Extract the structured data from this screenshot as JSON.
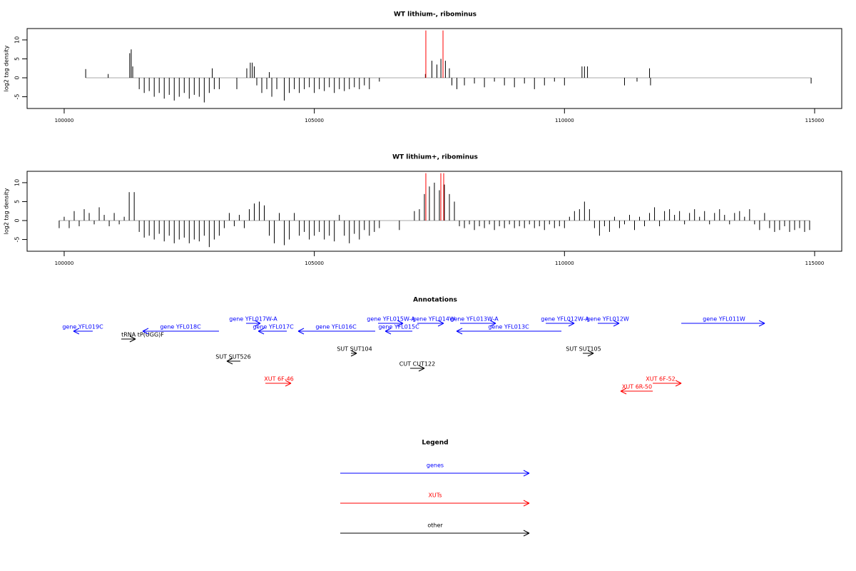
{
  "chart_data": [
    {
      "type": "bar",
      "title": "WT lithium-, ribominus",
      "y_label": "log2 tag density",
      "xlim": [
        99259,
        115542
      ],
      "ylim": [
        -8.1,
        13
      ],
      "xticks": [
        100000,
        105000,
        110000,
        115000
      ],
      "yticks": [
        -5,
        0,
        5,
        10
      ],
      "series": [
        {
          "color": "#000000",
          "x": [
            100430,
            100880,
            101310,
            101340,
            101370,
            101500,
            101600,
            101700,
            101800,
            101900,
            102000,
            102100,
            102200,
            102300,
            102400,
            102500,
            102600,
            102700,
            102800,
            102900,
            103000,
            103100,
            102960,
            103451,
            103650,
            103720,
            103760,
            103800,
            103850,
            103950,
            104050,
            104100,
            104150,
            104250,
            104400,
            104500,
            104600,
            104700,
            104800,
            104900,
            105000,
            105100,
            105200,
            105300,
            105400,
            105500,
            105600,
            105700,
            105800,
            105900,
            106000,
            106100,
            106300,
            107220,
            107350,
            107450,
            107530,
            107620,
            107700,
            107750,
            107850,
            108000,
            108200,
            108400,
            108600,
            108800,
            109000,
            109200,
            109400,
            109600,
            109800,
            110000,
            110350,
            110400,
            110460,
            111200,
            111450,
            111700,
            111720,
            114930
          ],
          "values": [
            2.3,
            1,
            6.5,
            7.5,
            3,
            -3,
            -4,
            -3.5,
            -5,
            -4,
            -5.5,
            -4.5,
            -6,
            -5,
            -4,
            -5.5,
            -4.5,
            -5,
            -6.5,
            -4,
            -3,
            -3,
            2.5,
            -3,
            2.5,
            4,
            4,
            3,
            -2,
            -4,
            -3,
            1.5,
            -5,
            -3,
            -6,
            -4,
            -3,
            -4,
            -3,
            -2.5,
            -4,
            -3,
            -3.5,
            -2.5,
            -4,
            -3,
            -3.5,
            -3,
            -2.5,
            -3,
            -2,
            -3,
            -1,
            1,
            4.5,
            3.5,
            5,
            4.5,
            2.5,
            -2,
            -3,
            -2,
            -1.5,
            -2.5,
            -1,
            -2,
            -2.5,
            -1.5,
            -3,
            -2,
            -1,
            -2,
            3,
            3,
            3,
            -2,
            -1,
            2.5,
            -2,
            -1.5
          ]
        },
        {
          "color": "#ff0000",
          "x": [
            107229,
            107572
          ],
          "values": [
            12.5,
            12.5
          ]
        }
      ]
    },
    {
      "type": "bar",
      "title": "WT lithium+, ribominus",
      "y_label": "log2 tag density",
      "xlim": [
        99259,
        115542
      ],
      "ylim": [
        -8.1,
        13
      ],
      "xticks": [
        100000,
        105000,
        110000,
        115000
      ],
      "yticks": [
        -5,
        0,
        5,
        10
      ],
      "series": [
        {
          "color": "#000000",
          "x": [
            99900,
            100000,
            100100,
            100200,
            100300,
            100400,
            100500,
            100600,
            100700,
            100800,
            100900,
            101000,
            101100,
            101200,
            101300,
            101400,
            101500,
            101600,
            101700,
            101800,
            101900,
            102000,
            102100,
            102200,
            102300,
            102400,
            102500,
            102600,
            102700,
            102800,
            102900,
            103000,
            103100,
            103200,
            103300,
            103400,
            103500,
            103600,
            103700,
            103800,
            103900,
            104000,
            104100,
            104200,
            104300,
            104400,
            104500,
            104600,
            104700,
            104800,
            104900,
            105000,
            105100,
            105200,
            105300,
            105400,
            105500,
            105600,
            105700,
            105800,
            105900,
            106000,
            106100,
            106200,
            106300,
            106400,
            106500,
            106600,
            106700,
            106800,
            106900,
            107000,
            107100,
            107200,
            107300,
            107400,
            107500,
            107600,
            107700,
            107800,
            107900,
            108000,
            108100,
            108200,
            108300,
            108400,
            108500,
            108600,
            108700,
            108800,
            108900,
            109000,
            109100,
            109200,
            109300,
            109400,
            109500,
            109600,
            109700,
            109800,
            109900,
            110000,
            110100,
            110200,
            110300,
            110400,
            110500,
            110600,
            110700,
            110800,
            110900,
            111000,
            111100,
            111200,
            111300,
            111400,
            111500,
            111600,
            111700,
            111800,
            111900,
            112000,
            112100,
            112200,
            112300,
            112400,
            112500,
            112600,
            112700,
            112800,
            112900,
            113000,
            113100,
            113200,
            113300,
            113400,
            113500,
            113600,
            113700,
            113800,
            113900,
            114000,
            114100,
            114200,
            114300,
            114400,
            114500,
            114600,
            114700,
            114800,
            114900
          ],
          "values": [
            -2,
            1,
            -2,
            2.5,
            -1.5,
            3,
            2,
            -1,
            3.5,
            1.5,
            -1.5,
            2,
            -1,
            1,
            7.5,
            7.5,
            -3,
            -4.5,
            -4,
            -5,
            -3.5,
            -5.5,
            -4,
            -6,
            -5,
            -4.5,
            -6,
            -5,
            -5.5,
            -4,
            -7,
            -5,
            -4,
            -2,
            2,
            -1.5,
            1.5,
            -2,
            3,
            4.5,
            5,
            4,
            -4,
            -6,
            2,
            -6.5,
            -5,
            2,
            -4,
            -3,
            -5,
            -4,
            -3,
            -5,
            -4,
            -5.5,
            1.5,
            -4,
            -6,
            -3.5,
            -5,
            -2.5,
            -4,
            -3,
            -2,
            0,
            0,
            0,
            -2.5,
            0,
            0,
            2.5,
            3,
            7,
            9,
            10,
            8,
            9.5,
            7,
            5,
            -1.5,
            -2,
            -1,
            -2.5,
            -1.5,
            -2,
            -1,
            -2.5,
            -1.5,
            -2,
            -1,
            -2,
            -1.5,
            -2,
            -1,
            -2,
            -1.5,
            -2.5,
            -1,
            -2,
            -1.5,
            -2,
            1,
            2.5,
            3,
            5,
            3,
            -2,
            -4,
            -1.5,
            -3,
            1,
            -2,
            -1,
            1.5,
            -2.5,
            1,
            -1.5,
            2,
            3.5,
            -1.5,
            2.5,
            3,
            1.5,
            2.5,
            -1,
            2,
            3,
            1,
            2.5,
            -1,
            2,
            3,
            1.5,
            -1,
            2,
            2.5,
            1,
            3,
            -1,
            -2.5,
            2,
            -2,
            -3,
            -2.5,
            -1.5,
            -3,
            -2.5,
            -2,
            -3,
            -2.5
          ]
        },
        {
          "color": "#ff0000",
          "x": [
            107229,
            107529,
            107586
          ],
          "values": [
            12.5,
            12.5,
            12.5
          ]
        }
      ]
    }
  ],
  "annotations": {
    "title": "Annotations",
    "items": [
      {
        "label": "gene YFL019C",
        "start": 100185,
        "end": 100570,
        "strand": "-",
        "color": "#0000ff"
      },
      {
        "label": "tRNA tP(UGG)F",
        "start": 101141,
        "end": 101426,
        "strand": "+",
        "color": "#000000"
      },
      {
        "label": "gene YFL018C",
        "start": 101569,
        "end": 103094,
        "strand": "-",
        "color": "#0000ff"
      },
      {
        "label": "gene YFL017W-A",
        "start": 103636,
        "end": 103922,
        "strand": "+",
        "color": "#0000ff"
      },
      {
        "label": "gene YFL017C",
        "start": 103879,
        "end": 104450,
        "strand": "-",
        "color": "#0000ff"
      },
      {
        "label": "gene YFL016C",
        "start": 104677,
        "end": 106217,
        "strand": "-",
        "color": "#0000ff"
      },
      {
        "label": "gene YFL015W-A",
        "start": 106274,
        "end": 106773,
        "strand": "+",
        "color": "#0000ff"
      },
      {
        "label": "gene YFL015C",
        "start": 106417,
        "end": 106959,
        "strand": "-",
        "color": "#0000ff"
      },
      {
        "label": "gene YFL014W",
        "start": 107059,
        "end": 107586,
        "strand": "+",
        "color": "#0000ff"
      },
      {
        "label": "gene YFL013W-A",
        "start": 107914,
        "end": 108627,
        "strand": "+",
        "color": "#0000ff"
      },
      {
        "label": "gene YFL013C",
        "start": 107843,
        "end": 109939,
        "strand": "-",
        "color": "#0000ff"
      },
      {
        "label": "gene YFL012W-A",
        "start": 109626,
        "end": 110196,
        "strand": "+",
        "color": "#0000ff"
      },
      {
        "label": "gene YFL012W",
        "start": 110666,
        "end": 111094,
        "strand": "+",
        "color": "#0000ff"
      },
      {
        "label": "gene YFL011W",
        "start": 112335,
        "end": 114003,
        "strand": "+",
        "color": "#0000ff"
      },
      {
        "label": "SUT SUT526",
        "start": 103251,
        "end": 103522,
        "strand": "-",
        "color": "#000000"
      },
      {
        "label": "SUT SUT104",
        "start": 105733,
        "end": 105847,
        "strand": "+",
        "color": "#000000"
      },
      {
        "label": "CUT CUT122",
        "start": 106916,
        "end": 107201,
        "strand": "+",
        "color": "#000000"
      },
      {
        "label": "SUT SUT105",
        "start": 110367,
        "end": 110581,
        "strand": "+",
        "color": "#000000"
      },
      {
        "label": "XUT 6F-46",
        "start": 104021,
        "end": 104535,
        "strand": "+",
        "color": "#ff0000"
      },
      {
        "label": "XUT 6F-52",
        "start": 111765,
        "end": 112335,
        "strand": "+",
        "color": "#ff0000"
      },
      {
        "label": "XUT 6R-50",
        "start": 111123,
        "end": 111765,
        "strand": "-",
        "color": "#ff0000"
      }
    ]
  },
  "legend": {
    "title": "Legend",
    "items": [
      {
        "label": "genes",
        "color": "#0000ff"
      },
      {
        "label": "XUTs",
        "color": "#ff0000"
      },
      {
        "label": "other",
        "color": "#000000"
      }
    ]
  }
}
